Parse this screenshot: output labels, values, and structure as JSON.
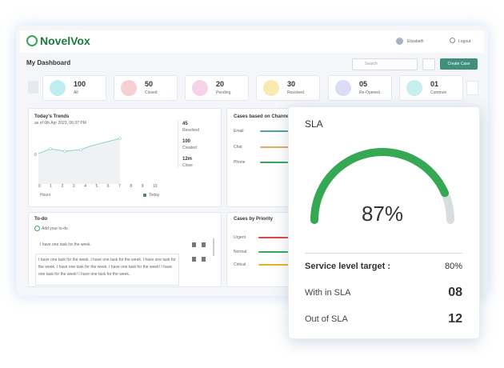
{
  "header": {
    "logo": "NovelVox",
    "user": "Elizabeth",
    "logout": "Logout"
  },
  "toolbar": {
    "title": "My Dashboard",
    "search_placeholder": "Search",
    "create_button": "Create Case"
  },
  "stats": [
    {
      "value": "100",
      "label": "All"
    },
    {
      "value": "50",
      "label": "Closed"
    },
    {
      "value": "20",
      "label": "Pending"
    },
    {
      "value": "30",
      "label": "Resolved"
    },
    {
      "value": "05",
      "label": "Re-Opened"
    },
    {
      "value": "01",
      "label": "Common"
    }
  ],
  "trends": {
    "title": "Today's Trends",
    "subtitle": "as of 6th Apr 2023, 06:37 PM",
    "y_tick": "0",
    "x_ticks": [
      "0",
      "1",
      "2",
      "3",
      "4",
      "5",
      "6",
      "7",
      "8",
      "9",
      "10"
    ],
    "x_label": "Hours",
    "legend": "Today",
    "summary": [
      {
        "value": "45",
        "label": "Resolved"
      },
      {
        "value": "100",
        "label": "Created"
      },
      {
        "value": "12m",
        "label": "Close"
      }
    ]
  },
  "channels": {
    "title": "Cases based on Channels",
    "rows": [
      "Email",
      "Chat",
      "Phone"
    ]
  },
  "todo": {
    "title": "To-do",
    "add": "Add your to-do",
    "items": [
      "I have one task for the week.",
      "I have one task for the week. I have one task for the week. I have one task for the week. I have one task for the week. I have one task for the week! I have one task for the week! I have one task for the week."
    ]
  },
  "priority": {
    "title": "Cases by Priority",
    "rows": [
      "Urgent",
      "Normal",
      "Critical"
    ]
  },
  "sla": {
    "title": "SLA",
    "percent": 87,
    "percent_label": "87%",
    "rows": [
      {
        "label": "Service level target :",
        "value": "80%"
      },
      {
        "label": "With in SLA",
        "value": "08"
      },
      {
        "label": "Out of SLA",
        "value": "12"
      }
    ]
  }
}
